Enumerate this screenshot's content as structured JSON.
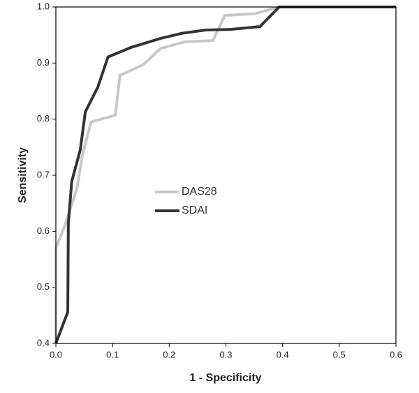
{
  "chart_data": {
    "type": "line",
    "xlabel": "1 - Specificity",
    "ylabel": "Sensitivity",
    "xlim": [
      0,
      0.6
    ],
    "ylim": [
      0.4,
      1
    ],
    "xticks": [
      {
        "value": 0,
        "label": "0.0"
      },
      0.1,
      0.2,
      0.3,
      0.4,
      0.5,
      0.6
    ],
    "yticks": [
      0.4,
      0.5,
      0.6,
      0.7,
      0.8,
      0.9,
      {
        "value": 1,
        "label": "1.0"
      }
    ],
    "legend": "center-left",
    "series": [
      {
        "name": "DAS28",
        "color": "#c8c8c8",
        "x": [
          0,
          0,
          0.015,
          0.037,
          0.047,
          0.062,
          0.105,
          0.113,
          0.154,
          0.185,
          0.228,
          0.277,
          0.298,
          0.351,
          0.394,
          0.6
        ],
        "values": [
          0.4,
          0.57,
          0.608,
          0.676,
          0.736,
          0.795,
          0.807,
          0.878,
          0.897,
          0.926,
          0.938,
          0.94,
          0.985,
          0.988,
          1,
          1
        ]
      },
      {
        "name": "SDAI",
        "color": "#333333",
        "x": [
          0,
          0.021,
          0.022,
          0.028,
          0.043,
          0.052,
          0.074,
          0.092,
          0.133,
          0.185,
          0.222,
          0.265,
          0.308,
          0.36,
          0.394,
          0.6
        ],
        "values": [
          0.4,
          0.456,
          0.614,
          0.689,
          0.745,
          0.813,
          0.857,
          0.911,
          0.928,
          0.944,
          0.953,
          0.959,
          0.96,
          0.965,
          1,
          1
        ]
      }
    ]
  }
}
